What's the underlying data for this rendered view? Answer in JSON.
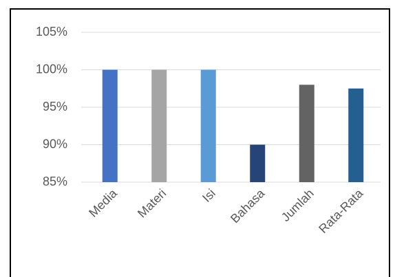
{
  "chart_data": {
    "type": "bar",
    "categories": [
      "Media",
      "Materi",
      "Isi",
      "Bahasa",
      "Jumlah",
      "Rata-Rata"
    ],
    "values": [
      100,
      100,
      100,
      90,
      98,
      97.5
    ],
    "colors": [
      "#4472c4",
      "#a5a5a5",
      "#5b9bd5",
      "#264478",
      "#636363",
      "#255e91"
    ],
    "ylim": [
      85,
      105
    ],
    "yticks": [
      {
        "value": 85,
        "label": "85%"
      },
      {
        "value": 90,
        "label": "90%"
      },
      {
        "value": 95,
        "label": "95%"
      },
      {
        "value": 100,
        "label": "100%"
      },
      {
        "value": 105,
        "label": "105%"
      }
    ],
    "grid": true
  }
}
